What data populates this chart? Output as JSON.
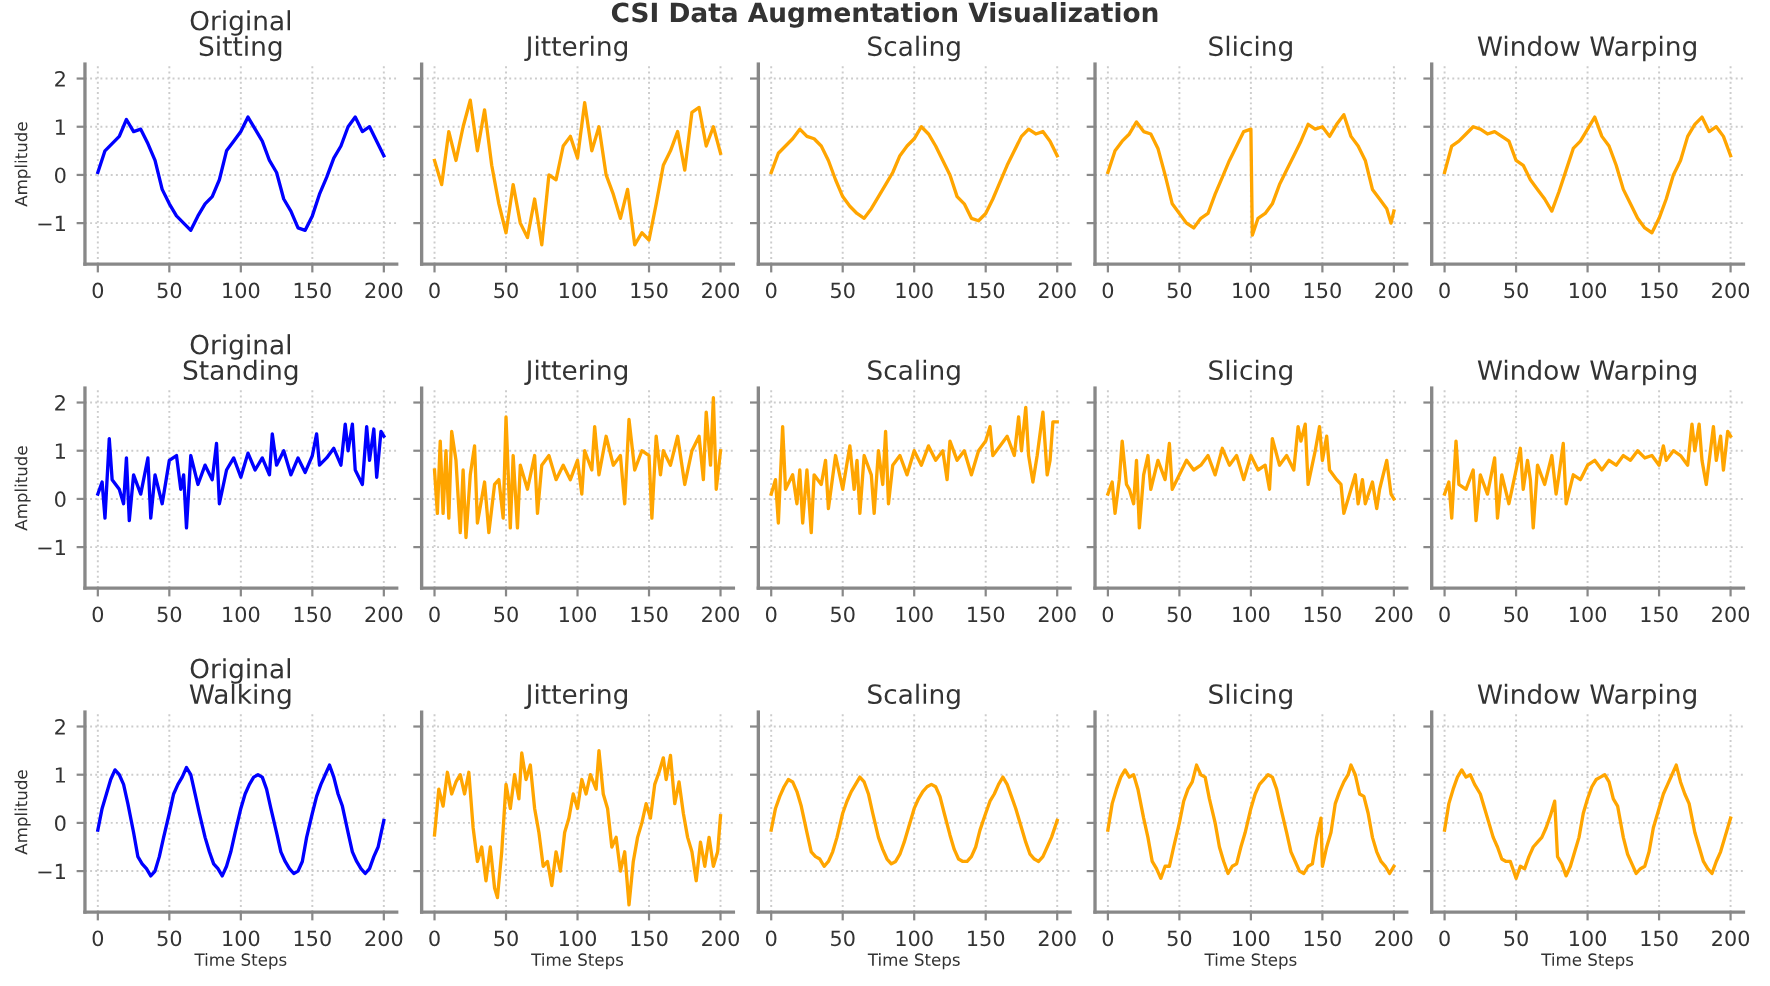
{
  "chart_data": [
    {
      "type": "line",
      "title": "Original\nSitting",
      "ylabel": "Amplitude",
      "annotations": [
        "CSI Data Augmentation Visualization"
      ],
      "xlim": [
        -9,
        209
      ],
      "ylim": [
        -1.85,
        2.3
      ],
      "xticks": [
        0,
        50,
        100,
        150,
        200
      ],
      "yticks": [
        -1,
        0,
        1,
        2
      ],
      "grid": true,
      "x": [
        0,
        5,
        10,
        15,
        20,
        25,
        30,
        35,
        40,
        45,
        50,
        55,
        60,
        65,
        70,
        75,
        80,
        85,
        90,
        95,
        100,
        105,
        110,
        115,
        120,
        125,
        130,
        135,
        140,
        145,
        150,
        155,
        160,
        165,
        170,
        175,
        180,
        185,
        190,
        195,
        200
      ],
      "series": [
        {
          "color": "#0000ff",
          "values": [
            0.05,
            0.5,
            0.65,
            0.8,
            1.15,
            0.9,
            0.95,
            0.65,
            0.3,
            -0.3,
            -0.6,
            -0.85,
            -1.0,
            -1.15,
            -0.85,
            -0.6,
            -0.45,
            -0.1,
            0.5,
            0.7,
            0.9,
            1.2,
            0.95,
            0.7,
            0.3,
            0.05,
            -0.5,
            -0.75,
            -1.1,
            -1.15,
            -0.85,
            -0.4,
            -0.05,
            0.35,
            0.6,
            1.0,
            1.2,
            0.9,
            1.0,
            0.7,
            0.4
          ]
        }
      ]
    },
    {
      "type": "line",
      "title": "Jittering",
      "tick_labels": "x",
      "xlim": [
        -9,
        209
      ],
      "ylim": [
        -1.85,
        2.3
      ],
      "xticks": [
        0,
        50,
        100,
        150,
        200
      ],
      "yticks": [
        -1,
        0,
        1,
        2
      ],
      "grid": true,
      "x": [
        0,
        5,
        10,
        15,
        20,
        25,
        30,
        35,
        40,
        45,
        50,
        55,
        60,
        65,
        70,
        75,
        80,
        85,
        90,
        95,
        100,
        105,
        110,
        115,
        120,
        125,
        130,
        135,
        140,
        145,
        150,
        155,
        160,
        165,
        170,
        175,
        180,
        185,
        190,
        195,
        200
      ],
      "series": [
        {
          "color": "#ffa500",
          "values": [
            0.3,
            -0.2,
            0.9,
            0.3,
            1.0,
            1.55,
            0.5,
            1.35,
            0.2,
            -0.6,
            -1.2,
            -0.2,
            -1.0,
            -1.3,
            -0.5,
            -1.45,
            0.0,
            -0.1,
            0.6,
            0.8,
            0.35,
            1.5,
            0.5,
            1.0,
            0.0,
            -0.4,
            -0.9,
            -0.3,
            -1.45,
            -1.2,
            -1.35,
            -0.6,
            0.2,
            0.5,
            0.9,
            0.1,
            1.3,
            1.4,
            0.6,
            1.0,
            0.45
          ]
        }
      ]
    },
    {
      "type": "line",
      "title": "Scaling",
      "tick_labels": "x",
      "xlim": [
        -9,
        209
      ],
      "ylim": [
        -1.85,
        2.3
      ],
      "xticks": [
        0,
        50,
        100,
        150,
        200
      ],
      "yticks": [
        -1,
        0,
        1,
        2
      ],
      "grid": true,
      "x": [
        0,
        5,
        10,
        15,
        20,
        25,
        30,
        35,
        40,
        45,
        50,
        55,
        60,
        65,
        70,
        75,
        80,
        85,
        90,
        95,
        100,
        105,
        110,
        115,
        120,
        125,
        130,
        135,
        140,
        145,
        150,
        155,
        160,
        165,
        170,
        175,
        180,
        185,
        190,
        195,
        200
      ],
      "series": [
        {
          "color": "#ffa500",
          "values": [
            0.05,
            0.45,
            0.6,
            0.75,
            0.95,
            0.8,
            0.75,
            0.6,
            0.3,
            -0.1,
            -0.45,
            -0.65,
            -0.8,
            -0.9,
            -0.7,
            -0.45,
            -0.2,
            0.05,
            0.4,
            0.6,
            0.75,
            1.0,
            0.85,
            0.6,
            0.3,
            0.0,
            -0.45,
            -0.6,
            -0.9,
            -0.95,
            -0.8,
            -0.5,
            -0.15,
            0.2,
            0.5,
            0.8,
            0.95,
            0.85,
            0.9,
            0.7,
            0.4
          ]
        }
      ]
    },
    {
      "type": "line",
      "title": "Slicing",
      "tick_labels": "x",
      "xlim": [
        -9,
        209
      ],
      "ylim": [
        -1.85,
        2.3
      ],
      "xticks": [
        0,
        50,
        100,
        150,
        200
      ],
      "yticks": [
        -1,
        0,
        1,
        2
      ],
      "grid": true,
      "x": [
        0,
        5,
        10,
        15,
        20,
        25,
        30,
        35,
        40,
        45,
        50,
        55,
        60,
        65,
        70,
        75,
        80,
        85,
        90,
        95,
        100,
        101,
        105,
        110,
        115,
        120,
        125,
        130,
        135,
        140,
        145,
        150,
        155,
        160,
        165,
        170,
        175,
        180,
        185,
        190,
        195,
        198,
        200
      ],
      "series": [
        {
          "color": "#ffa500",
          "values": [
            0.05,
            0.5,
            0.7,
            0.85,
            1.1,
            0.9,
            0.85,
            0.55,
            0.0,
            -0.6,
            -0.8,
            -1.0,
            -1.1,
            -0.9,
            -0.8,
            -0.4,
            -0.05,
            0.3,
            0.6,
            0.9,
            0.95,
            -1.25,
            -0.9,
            -0.8,
            -0.6,
            -0.2,
            0.1,
            0.4,
            0.7,
            1.05,
            0.95,
            1.0,
            0.8,
            1.05,
            1.25,
            0.8,
            0.6,
            0.3,
            -0.3,
            -0.5,
            -0.7,
            -1.0,
            -0.75
          ]
        }
      ]
    },
    {
      "type": "line",
      "title": "Window Warping",
      "tick_labels": "x",
      "xlim": [
        -9,
        209
      ],
      "ylim": [
        -1.85,
        2.3
      ],
      "xticks": [
        0,
        50,
        100,
        150,
        200
      ],
      "yticks": [
        -1,
        0,
        1,
        2
      ],
      "grid": true,
      "x": [
        0,
        5,
        10,
        15,
        20,
        25,
        30,
        35,
        40,
        45,
        50,
        55,
        60,
        65,
        70,
        75,
        80,
        85,
        90,
        95,
        100,
        105,
        110,
        115,
        120,
        125,
        130,
        135,
        140,
        145,
        150,
        155,
        160,
        165,
        170,
        175,
        180,
        185,
        190,
        195,
        200
      ],
      "series": [
        {
          "color": "#ffa500",
          "values": [
            0.05,
            0.6,
            0.7,
            0.85,
            1.0,
            0.95,
            0.85,
            0.9,
            0.8,
            0.7,
            0.3,
            0.2,
            -0.1,
            -0.3,
            -0.5,
            -0.75,
            -0.35,
            0.1,
            0.55,
            0.7,
            0.95,
            1.2,
            0.8,
            0.6,
            0.2,
            -0.3,
            -0.6,
            -0.9,
            -1.1,
            -1.2,
            -0.9,
            -0.5,
            0.0,
            0.3,
            0.8,
            1.05,
            1.2,
            0.9,
            1.0,
            0.8,
            0.4
          ]
        }
      ]
    },
    {
      "type": "line",
      "title": "Original\nStanding",
      "ylabel": "Amplitude",
      "xlim": [
        -9,
        209
      ],
      "ylim": [
        -1.85,
        2.3
      ],
      "xticks": [
        0,
        50,
        100,
        150,
        200
      ],
      "yticks": [
        -1,
        0,
        1,
        2
      ],
      "grid": true,
      "x": [
        0,
        3,
        5,
        8,
        10,
        15,
        18,
        20,
        22,
        25,
        30,
        35,
        37,
        40,
        45,
        50,
        55,
        58,
        60,
        62,
        65,
        70,
        75,
        80,
        83,
        85,
        90,
        95,
        100,
        105,
        110,
        115,
        120,
        122,
        125,
        130,
        135,
        140,
        145,
        150,
        153,
        155,
        160,
        165,
        170,
        173,
        175,
        178,
        180,
        185,
        188,
        190,
        193,
        195,
        198,
        200
      ],
      "series": [
        {
          "color": "#0000ff",
          "values": [
            0.1,
            0.35,
            -0.4,
            1.25,
            0.4,
            0.2,
            -0.1,
            0.85,
            -0.45,
            0.5,
            0.1,
            0.85,
            -0.4,
            0.5,
            -0.1,
            0.8,
            0.9,
            0.2,
            0.5,
            -0.6,
            0.9,
            0.3,
            0.7,
            0.4,
            1.15,
            -0.1,
            0.6,
            0.85,
            0.45,
            0.95,
            0.6,
            0.85,
            0.5,
            1.35,
            0.7,
            1.0,
            0.5,
            0.85,
            0.55,
            0.9,
            1.35,
            0.7,
            0.85,
            1.05,
            0.7,
            1.55,
            1.0,
            1.55,
            0.6,
            0.3,
            1.5,
            0.8,
            1.45,
            0.45,
            1.4,
            1.3
          ]
        }
      ]
    },
    {
      "type": "line",
      "title": "Jittering",
      "tick_labels": "x",
      "xlim": [
        -9,
        209
      ],
      "ylim": [
        -1.85,
        2.3
      ],
      "xticks": [
        0,
        50,
        100,
        150,
        200
      ],
      "yticks": [
        -1,
        0,
        1,
        2
      ],
      "grid": true,
      "x": [
        0,
        2,
        4,
        6,
        8,
        10,
        12,
        15,
        18,
        20,
        22,
        25,
        28,
        30,
        35,
        38,
        42,
        45,
        48,
        50,
        53,
        55,
        58,
        60,
        65,
        70,
        72,
        75,
        80,
        85,
        90,
        95,
        100,
        103,
        105,
        110,
        112,
        115,
        120,
        125,
        130,
        133,
        136,
        140,
        145,
        150,
        152,
        155,
        158,
        160,
        165,
        170,
        175,
        180,
        185,
        188,
        190,
        193,
        195,
        197,
        200
      ],
      "series": [
        {
          "color": "#ffa500",
          "values": [
            0.6,
            -0.3,
            1.2,
            -0.3,
            1.0,
            -0.4,
            1.4,
            0.8,
            -0.7,
            0.6,
            -0.8,
            0.5,
            1.1,
            -0.5,
            0.35,
            -0.7,
            0.3,
            0.4,
            -0.4,
            1.7,
            -0.6,
            0.9,
            -0.6,
            0.7,
            0.2,
            0.9,
            -0.3,
            0.7,
            0.9,
            0.4,
            0.7,
            0.4,
            0.8,
            0.1,
            1.0,
            0.6,
            1.5,
            0.5,
            1.3,
            0.7,
            0.9,
            -0.1,
            1.65,
            0.6,
            1.0,
            0.9,
            -0.4,
            1.3,
            0.5,
            1.0,
            0.7,
            1.3,
            0.3,
            1.0,
            1.3,
            0.4,
            1.8,
            0.7,
            2.1,
            0.2,
            1.0
          ]
        }
      ]
    },
    {
      "type": "line",
      "title": "Scaling",
      "tick_labels": "x",
      "xlim": [
        -9,
        209
      ],
      "ylim": [
        -1.85,
        2.3
      ],
      "xticks": [
        0,
        50,
        100,
        150,
        200
      ],
      "yticks": [
        -1,
        0,
        1,
        2
      ],
      "grid": true,
      "x": [
        0,
        3,
        5,
        8,
        10,
        15,
        18,
        20,
        22,
        25,
        28,
        30,
        35,
        38,
        40,
        45,
        50,
        55,
        58,
        60,
        62,
        65,
        70,
        72,
        75,
        78,
        80,
        82,
        85,
        90,
        95,
        100,
        105,
        110,
        115,
        120,
        123,
        125,
        130,
        135,
        140,
        145,
        150,
        153,
        155,
        160,
        165,
        170,
        173,
        175,
        178,
        180,
        183,
        186,
        190,
        193,
        195,
        197,
        200
      ],
      "series": [
        {
          "color": "#ffa500",
          "values": [
            0.1,
            0.4,
            -0.5,
            1.5,
            0.2,
            0.5,
            -0.1,
            0.6,
            -0.5,
            0.6,
            -0.7,
            0.5,
            0.3,
            0.8,
            -0.2,
            0.9,
            0.2,
            1.1,
            0.2,
            0.8,
            -0.3,
            0.9,
            0.5,
            -0.3,
            1.0,
            0.3,
            1.4,
            -0.1,
            0.7,
            0.9,
            0.5,
            1.0,
            0.7,
            1.1,
            0.8,
            1.0,
            0.4,
            1.2,
            0.8,
            1.0,
            0.5,
            1.0,
            1.2,
            1.5,
            0.9,
            1.1,
            1.3,
            0.9,
            1.7,
            1.0,
            1.9,
            0.9,
            0.35,
            0.9,
            1.8,
            0.5,
            0.8,
            1.6,
            1.6
          ]
        }
      ]
    },
    {
      "type": "line",
      "title": "Slicing",
      "tick_labels": "x",
      "xlim": [
        -9,
        209
      ],
      "ylim": [
        -1.85,
        2.3
      ],
      "xticks": [
        0,
        50,
        100,
        150,
        200
      ],
      "yticks": [
        -1,
        0,
        1,
        2
      ],
      "grid": true,
      "x": [
        0,
        3,
        5,
        8,
        10,
        13,
        15,
        18,
        20,
        22,
        25,
        28,
        30,
        35,
        40,
        43,
        45,
        50,
        55,
        60,
        65,
        70,
        75,
        80,
        85,
        90,
        95,
        100,
        105,
        110,
        113,
        115,
        120,
        125,
        130,
        133,
        135,
        138,
        140,
        145,
        148,
        150,
        153,
        155,
        160,
        163,
        165,
        170,
        173,
        175,
        178,
        180,
        185,
        188,
        190,
        195,
        198,
        200
      ],
      "series": [
        {
          "color": "#ffa500",
          "values": [
            0.1,
            0.35,
            -0.3,
            0.4,
            1.2,
            0.3,
            0.2,
            -0.1,
            0.8,
            -0.6,
            0.5,
            0.9,
            0.2,
            0.8,
            0.4,
            1.15,
            0.2,
            0.5,
            0.8,
            0.6,
            0.7,
            0.9,
            0.5,
            1.05,
            0.7,
            0.9,
            0.4,
            0.9,
            0.6,
            0.7,
            0.2,
            1.25,
            0.7,
            0.9,
            0.6,
            1.5,
            1.2,
            1.55,
            0.3,
            1.0,
            1.5,
            0.8,
            1.3,
            0.6,
            0.4,
            0.3,
            -0.3,
            0.2,
            0.5,
            -0.1,
            0.4,
            -0.1,
            0.35,
            -0.2,
            0.2,
            0.8,
            0.1,
            0.0
          ]
        }
      ]
    },
    {
      "type": "line",
      "title": "Window Warping",
      "tick_labels": "x",
      "xlim": [
        -9,
        209
      ],
      "ylim": [
        -1.85,
        2.3
      ],
      "xticks": [
        0,
        50,
        100,
        150,
        200
      ],
      "yticks": [
        -1,
        0,
        1,
        2
      ],
      "grid": true,
      "x": [
        0,
        3,
        5,
        8,
        10,
        15,
        20,
        22,
        25,
        30,
        35,
        37,
        40,
        45,
        50,
        53,
        55,
        58,
        60,
        62,
        65,
        70,
        75,
        78,
        80,
        83,
        85,
        90,
        95,
        100,
        105,
        110,
        115,
        120,
        125,
        130,
        135,
        140,
        145,
        150,
        153,
        155,
        160,
        165,
        170,
        173,
        175,
        178,
        180,
        183,
        188,
        190,
        193,
        195,
        198,
        200
      ],
      "series": [
        {
          "color": "#ffa500",
          "values": [
            0.1,
            0.35,
            -0.4,
            1.2,
            0.3,
            0.2,
            0.6,
            -0.45,
            0.5,
            0.1,
            0.85,
            -0.4,
            0.5,
            -0.1,
            0.6,
            1.05,
            0.2,
            0.8,
            0.4,
            -0.6,
            0.7,
            0.3,
            0.9,
            0.1,
            0.5,
            1.15,
            -0.1,
            0.5,
            0.4,
            0.7,
            0.8,
            0.6,
            0.8,
            0.7,
            0.9,
            0.8,
            1.0,
            0.85,
            0.9,
            0.7,
            1.1,
            0.8,
            1.0,
            0.9,
            0.7,
            1.55,
            1.0,
            1.55,
            0.8,
            0.3,
            1.5,
            0.8,
            1.3,
            0.6,
            1.4,
            1.3
          ]
        }
      ]
    },
    {
      "type": "line",
      "title": "Original\nWalking",
      "ylabel": "Amplitude",
      "xlabel": "Time Steps",
      "xlim": [
        -9,
        209
      ],
      "ylim": [
        -1.85,
        2.3
      ],
      "xticks": [
        0,
        50,
        100,
        150,
        200
      ],
      "yticks": [
        -1,
        0,
        1,
        2
      ],
      "grid": true,
      "x": [
        0,
        3,
        6,
        9,
        12,
        15,
        18,
        21,
        25,
        28,
        31,
        34,
        37,
        40,
        43,
        46,
        50,
        53,
        56,
        59,
        62,
        65,
        68,
        71,
        75,
        78,
        81,
        84,
        87,
        90,
        93,
        96,
        100,
        103,
        106,
        109,
        112,
        115,
        118,
        121,
        125,
        128,
        131,
        134,
        137,
        140,
        143,
        146,
        150,
        153,
        156,
        159,
        162,
        165,
        168,
        171,
        175,
        178,
        181,
        184,
        187,
        190,
        193,
        196,
        200
      ],
      "series": [
        {
          "color": "#0000ff",
          "values": [
            -0.15,
            0.3,
            0.6,
            0.9,
            1.1,
            1.0,
            0.8,
            0.4,
            -0.2,
            -0.7,
            -0.85,
            -0.95,
            -1.1,
            -1.0,
            -0.7,
            -0.3,
            0.2,
            0.6,
            0.8,
            0.95,
            1.15,
            1.0,
            0.6,
            0.2,
            -0.3,
            -0.6,
            -0.85,
            -0.95,
            -1.1,
            -0.9,
            -0.6,
            -0.2,
            0.3,
            0.6,
            0.8,
            0.95,
            1.0,
            0.95,
            0.7,
            0.3,
            -0.2,
            -0.6,
            -0.8,
            -0.95,
            -1.05,
            -1.0,
            -0.8,
            -0.3,
            0.2,
            0.55,
            0.8,
            1.0,
            1.2,
            0.95,
            0.6,
            0.35,
            -0.2,
            -0.6,
            -0.8,
            -0.95,
            -1.05,
            -0.95,
            -0.7,
            -0.5,
            0.05
          ]
        }
      ]
    },
    {
      "type": "line",
      "title": "Jittering",
      "xlabel": "Time Steps",
      "tick_labels": "x",
      "xlim": [
        -9,
        209
      ],
      "ylim": [
        -1.85,
        2.3
      ],
      "xticks": [
        0,
        50,
        100,
        150,
        200
      ],
      "yticks": [
        -1,
        0,
        1,
        2
      ],
      "grid": true,
      "x": [
        0,
        3,
        6,
        9,
        12,
        15,
        18,
        21,
        24,
        27,
        30,
        33,
        36,
        39,
        42,
        44,
        47,
        50,
        53,
        56,
        59,
        61,
        64,
        67,
        70,
        73,
        76,
        79,
        82,
        85,
        88,
        91,
        94,
        97,
        100,
        103,
        106,
        109,
        113,
        115,
        118,
        121,
        124,
        127,
        130,
        133,
        136,
        139,
        142,
        145,
        148,
        151,
        154,
        157,
        160,
        162,
        165,
        168,
        171,
        174,
        177,
        180,
        183,
        186,
        189,
        192,
        195,
        198,
        200
      ],
      "series": [
        {
          "color": "#ffa500",
          "values": [
            -0.25,
            0.7,
            0.35,
            1.05,
            0.6,
            0.85,
            1.0,
            0.6,
            1.05,
            -0.1,
            -0.8,
            -0.5,
            -1.2,
            -0.5,
            -1.35,
            -1.55,
            -0.6,
            0.8,
            0.3,
            1.0,
            0.5,
            1.45,
            0.9,
            1.2,
            0.3,
            -0.2,
            -0.9,
            -0.8,
            -1.3,
            -0.6,
            -1.0,
            -0.2,
            0.1,
            0.6,
            0.3,
            0.9,
            0.6,
            1.0,
            0.7,
            1.5,
            0.6,
            0.3,
            -0.5,
            -0.3,
            -1.0,
            -0.6,
            -1.7,
            -0.8,
            -0.3,
            0.0,
            0.4,
            0.1,
            0.8,
            1.05,
            1.35,
            0.9,
            1.4,
            0.4,
            0.85,
            0.2,
            -0.3,
            -0.6,
            -1.2,
            -0.4,
            -0.9,
            -0.3,
            -0.9,
            -0.6,
            0.15
          ]
        }
      ]
    },
    {
      "type": "line",
      "title": "Scaling",
      "xlabel": "Time Steps",
      "tick_labels": "x",
      "xlim": [
        -9,
        209
      ],
      "ylim": [
        -1.85,
        2.3
      ],
      "xticks": [
        0,
        50,
        100,
        150,
        200
      ],
      "yticks": [
        -1,
        0,
        1,
        2
      ],
      "grid": true,
      "x": [
        0,
        3,
        6,
        9,
        12,
        15,
        18,
        21,
        25,
        28,
        31,
        34,
        37,
        40,
        43,
        46,
        50,
        53,
        56,
        59,
        62,
        65,
        68,
        71,
        75,
        78,
        81,
        84,
        87,
        90,
        93,
        96,
        100,
        103,
        106,
        109,
        112,
        115,
        118,
        121,
        125,
        128,
        131,
        134,
        137,
        140,
        143,
        146,
        150,
        153,
        156,
        159,
        162,
        165,
        168,
        171,
        175,
        178,
        181,
        184,
        187,
        190,
        193,
        196,
        200
      ],
      "series": [
        {
          "color": "#ffa500",
          "values": [
            -0.15,
            0.3,
            0.55,
            0.75,
            0.9,
            0.85,
            0.65,
            0.35,
            -0.2,
            -0.6,
            -0.7,
            -0.75,
            -0.9,
            -0.8,
            -0.6,
            -0.3,
            0.2,
            0.45,
            0.65,
            0.8,
            0.95,
            0.85,
            0.6,
            0.2,
            -0.3,
            -0.55,
            -0.75,
            -0.85,
            -0.8,
            -0.65,
            -0.4,
            -0.1,
            0.3,
            0.5,
            0.65,
            0.75,
            0.8,
            0.75,
            0.55,
            0.2,
            -0.25,
            -0.55,
            -0.75,
            -0.8,
            -0.8,
            -0.7,
            -0.5,
            -0.15,
            0.2,
            0.45,
            0.6,
            0.8,
            0.95,
            0.8,
            0.55,
            0.3,
            -0.1,
            -0.4,
            -0.65,
            -0.75,
            -0.8,
            -0.7,
            -0.5,
            -0.3,
            0.05
          ]
        }
      ]
    },
    {
      "type": "line",
      "title": "Slicing",
      "xlabel": "Time Steps",
      "tick_labels": "x",
      "xlim": [
        -9,
        209
      ],
      "ylim": [
        -1.85,
        2.3
      ],
      "xticks": [
        0,
        50,
        100,
        150,
        200
      ],
      "yticks": [
        -1,
        0,
        1,
        2
      ],
      "grid": true,
      "x": [
        0,
        3,
        6,
        9,
        12,
        15,
        18,
        21,
        25,
        28,
        31,
        34,
        37,
        40,
        43,
        46,
        50,
        53,
        56,
        59,
        62,
        65,
        68,
        71,
        75,
        78,
        81,
        84,
        87,
        90,
        93,
        96,
        100,
        103,
        106,
        109,
        112,
        115,
        118,
        121,
        125,
        128,
        131,
        134,
        137,
        140,
        143,
        146,
        149,
        150,
        153,
        156,
        159,
        162,
        165,
        168,
        170,
        173,
        176,
        179,
        182,
        185,
        188,
        191,
        194,
        197,
        200
      ],
      "series": [
        {
          "color": "#ffa500",
          "values": [
            -0.15,
            0.4,
            0.7,
            0.95,
            1.1,
            0.95,
            1.0,
            0.7,
            0.1,
            -0.3,
            -0.8,
            -0.95,
            -1.15,
            -0.9,
            -0.9,
            -0.5,
            0.0,
            0.45,
            0.7,
            0.85,
            1.2,
            1.0,
            0.95,
            0.5,
            0.0,
            -0.5,
            -0.8,
            -1.05,
            -0.9,
            -0.85,
            -0.5,
            -0.2,
            0.3,
            0.6,
            0.8,
            0.9,
            1.0,
            0.95,
            0.7,
            0.3,
            -0.2,
            -0.6,
            -0.8,
            -1.0,
            -1.05,
            -0.9,
            -0.85,
            -0.3,
            0.1,
            -0.9,
            -0.5,
            -0.2,
            0.4,
            0.65,
            0.85,
            1.0,
            1.2,
            1.0,
            0.6,
            0.55,
            0.2,
            -0.3,
            -0.6,
            -0.8,
            -0.9,
            -1.05,
            -0.9
          ]
        }
      ]
    },
    {
      "type": "line",
      "title": "Window Warping",
      "xlabel": "Time Steps",
      "tick_labels": "x",
      "xlim": [
        -9,
        209
      ],
      "ylim": [
        -1.85,
        2.3
      ],
      "xticks": [
        0,
        50,
        100,
        150,
        200
      ],
      "yticks": [
        -1,
        0,
        1,
        2
      ],
      "grid": true,
      "x": [
        0,
        3,
        6,
        9,
        12,
        15,
        18,
        21,
        25,
        28,
        31,
        34,
        37,
        40,
        43,
        46,
        50,
        53,
        56,
        59,
        62,
        65,
        68,
        71,
        74,
        77,
        79,
        82,
        85,
        88,
        91,
        94,
        97,
        100,
        103,
        106,
        109,
        112,
        115,
        118,
        121,
        125,
        128,
        131,
        134,
        137,
        140,
        143,
        146,
        150,
        153,
        156,
        159,
        162,
        165,
        168,
        171,
        175,
        178,
        181,
        184,
        187,
        190,
        193,
        196,
        200
      ],
      "series": [
        {
          "color": "#ffa500",
          "values": [
            -0.15,
            0.4,
            0.7,
            0.95,
            1.1,
            0.95,
            1.0,
            0.8,
            0.6,
            0.3,
            0.0,
            -0.3,
            -0.5,
            -0.75,
            -0.8,
            -0.8,
            -1.15,
            -0.9,
            -0.95,
            -0.7,
            -0.5,
            -0.4,
            -0.3,
            -0.1,
            0.15,
            0.45,
            -0.7,
            -0.85,
            -1.1,
            -0.9,
            -0.6,
            -0.3,
            0.2,
            0.5,
            0.75,
            0.9,
            0.95,
            1.0,
            0.85,
            0.5,
            0.35,
            -0.3,
            -0.65,
            -0.85,
            -1.05,
            -0.95,
            -0.9,
            -0.6,
            -0.1,
            0.3,
            0.6,
            0.8,
            1.0,
            1.2,
            0.85,
            0.6,
            0.4,
            -0.2,
            -0.5,
            -0.8,
            -0.95,
            -1.05,
            -0.8,
            -0.6,
            -0.3,
            0.1
          ]
        }
      ]
    }
  ]
}
